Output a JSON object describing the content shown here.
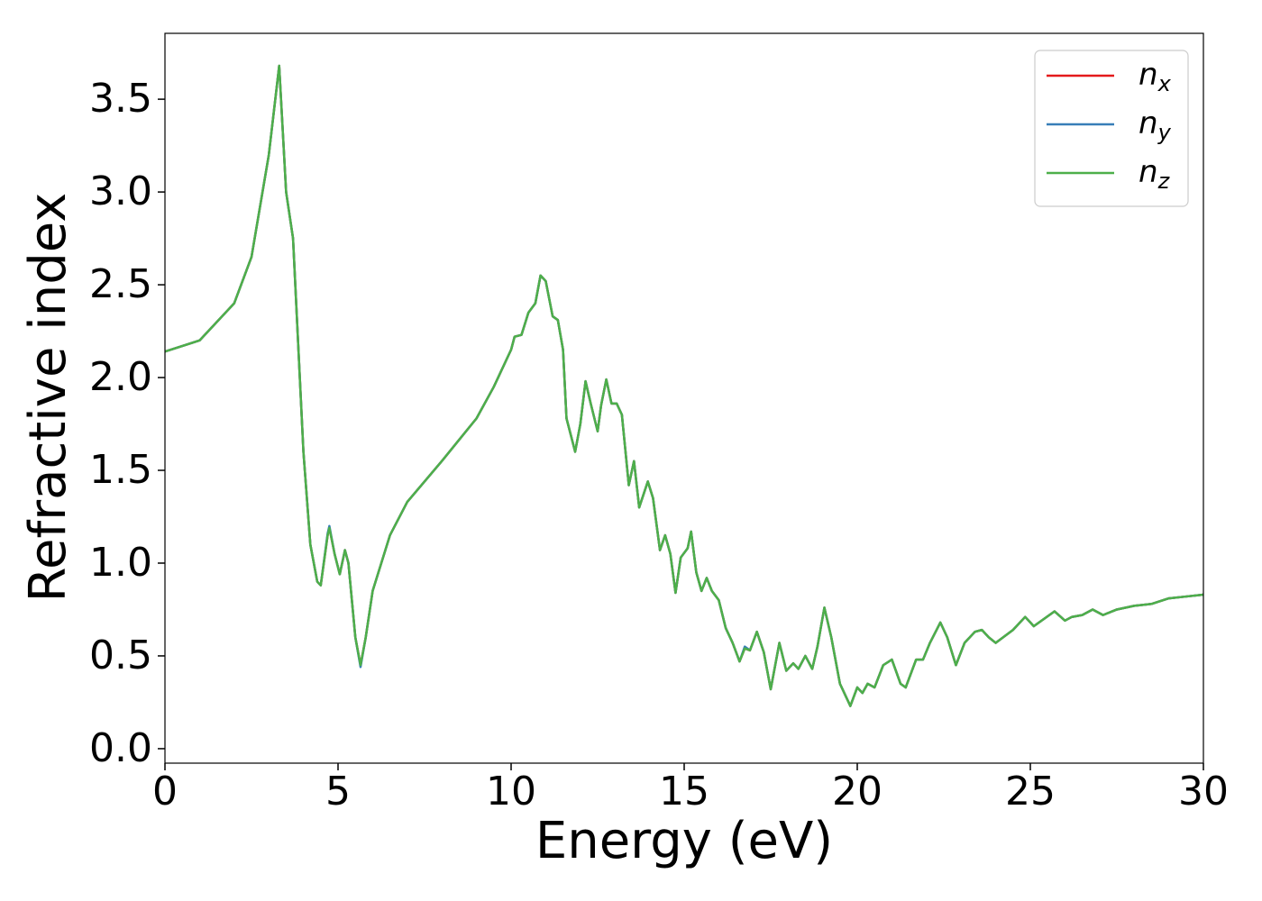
{
  "chart_data": {
    "type": "line",
    "xlabel": "Energy (eV)",
    "ylabel": "Refractive index",
    "x": [
      0,
      1,
      2,
      2.5,
      3,
      3.3,
      3.5,
      3.7,
      4,
      4.2,
      4.4,
      4.5,
      4.7,
      4.75,
      4.9,
      5.05,
      5.2,
      5.3,
      5.5,
      5.65,
      5.8,
      6,
      6.5,
      7,
      8,
      9,
      9.5,
      10,
      10.1,
      10.3,
      10.5,
      10.7,
      10.85,
      11,
      11.2,
      11.35,
      11.5,
      11.6,
      11.85,
      12,
      12.15,
      12.3,
      12.5,
      12.6,
      12.75,
      12.9,
      13.05,
      13.2,
      13.4,
      13.55,
      13.7,
      13.95,
      14.1,
      14.3,
      14.45,
      14.6,
      14.75,
      14.9,
      15.1,
      15.2,
      15.35,
      15.5,
      15.65,
      15.8,
      16,
      16.2,
      16.4,
      16.6,
      16.75,
      16.9,
      17.1,
      17.3,
      17.5,
      17.75,
      17.95,
      18.15,
      18.3,
      18.5,
      18.7,
      18.85,
      19.05,
      19.25,
      19.5,
      19.8,
      20,
      20.15,
      20.3,
      20.5,
      20.75,
      21,
      21.25,
      21.4,
      21.7,
      21.9,
      22.1,
      22.4,
      22.6,
      22.85,
      23.1,
      23.4,
      23.6,
      23.8,
      24,
      24.5,
      24.85,
      25.1,
      25.4,
      25.7,
      26,
      26.2,
      26.5,
      26.8,
      27.1,
      27.5,
      28,
      28.5,
      29,
      29.5,
      30
    ],
    "series": [
      {
        "name": "n_x",
        "color": "#e41a1c",
        "values": [
          2.14,
          2.2,
          2.4,
          2.65,
          3.2,
          3.68,
          3.0,
          2.75,
          1.6,
          1.1,
          0.9,
          0.88,
          1.15,
          1.19,
          1.05,
          0.94,
          1.07,
          1.0,
          0.6,
          0.45,
          0.6,
          0.85,
          1.15,
          1.33,
          1.55,
          1.78,
          1.95,
          2.15,
          2.22,
          2.23,
          2.35,
          2.4,
          2.55,
          2.52,
          2.33,
          2.31,
          2.15,
          1.78,
          1.6,
          1.75,
          1.98,
          1.86,
          1.71,
          1.85,
          1.99,
          1.86,
          1.86,
          1.8,
          1.42,
          1.55,
          1.3,
          1.44,
          1.35,
          1.07,
          1.15,
          1.05,
          0.84,
          1.03,
          1.08,
          1.17,
          0.95,
          0.85,
          0.92,
          0.85,
          0.8,
          0.65,
          0.57,
          0.47,
          0.54,
          0.53,
          0.63,
          0.52,
          0.32,
          0.57,
          0.42,
          0.46,
          0.43,
          0.5,
          0.43,
          0.55,
          0.76,
          0.6,
          0.35,
          0.23,
          0.33,
          0.3,
          0.35,
          0.33,
          0.45,
          0.48,
          0.35,
          0.33,
          0.48,
          0.48,
          0.57,
          0.68,
          0.6,
          0.45,
          0.57,
          0.63,
          0.64,
          0.6,
          0.57,
          0.64,
          0.71,
          0.66,
          0.7,
          0.74,
          0.69,
          0.71,
          0.72,
          0.75,
          0.72,
          0.75,
          0.77,
          0.78,
          0.81,
          0.82,
          0.83
        ]
      },
      {
        "name": "n_y",
        "color": "#377eb8",
        "values": [
          2.14,
          2.2,
          2.4,
          2.65,
          3.2,
          3.68,
          3.0,
          2.75,
          1.6,
          1.1,
          0.9,
          0.88,
          1.16,
          1.2,
          1.05,
          0.94,
          1.07,
          1.0,
          0.6,
          0.44,
          0.6,
          0.85,
          1.15,
          1.33,
          1.55,
          1.78,
          1.95,
          2.15,
          2.22,
          2.23,
          2.35,
          2.4,
          2.55,
          2.52,
          2.33,
          2.31,
          2.15,
          1.78,
          1.6,
          1.75,
          1.98,
          1.86,
          1.71,
          1.85,
          1.99,
          1.86,
          1.86,
          1.8,
          1.42,
          1.55,
          1.3,
          1.44,
          1.35,
          1.07,
          1.15,
          1.05,
          0.84,
          1.03,
          1.08,
          1.17,
          0.95,
          0.85,
          0.92,
          0.85,
          0.8,
          0.65,
          0.57,
          0.47,
          0.55,
          0.53,
          0.63,
          0.52,
          0.32,
          0.57,
          0.42,
          0.46,
          0.43,
          0.5,
          0.43,
          0.55,
          0.76,
          0.6,
          0.35,
          0.23,
          0.33,
          0.3,
          0.35,
          0.33,
          0.45,
          0.48,
          0.35,
          0.33,
          0.48,
          0.48,
          0.57,
          0.68,
          0.6,
          0.45,
          0.57,
          0.63,
          0.64,
          0.6,
          0.57,
          0.64,
          0.71,
          0.66,
          0.7,
          0.74,
          0.69,
          0.71,
          0.72,
          0.75,
          0.72,
          0.75,
          0.77,
          0.78,
          0.81,
          0.82,
          0.83
        ]
      },
      {
        "name": "n_z",
        "color": "#4daf4a",
        "values": [
          2.14,
          2.2,
          2.4,
          2.65,
          3.2,
          3.68,
          3.0,
          2.75,
          1.6,
          1.1,
          0.9,
          0.88,
          1.15,
          1.19,
          1.05,
          0.94,
          1.07,
          1.0,
          0.6,
          0.45,
          0.6,
          0.85,
          1.15,
          1.33,
          1.55,
          1.78,
          1.95,
          2.15,
          2.22,
          2.23,
          2.35,
          2.4,
          2.55,
          2.52,
          2.33,
          2.31,
          2.15,
          1.78,
          1.6,
          1.75,
          1.98,
          1.86,
          1.71,
          1.85,
          1.99,
          1.86,
          1.86,
          1.8,
          1.42,
          1.55,
          1.3,
          1.44,
          1.35,
          1.07,
          1.15,
          1.05,
          0.84,
          1.03,
          1.08,
          1.17,
          0.95,
          0.85,
          0.92,
          0.85,
          0.8,
          0.65,
          0.57,
          0.47,
          0.54,
          0.53,
          0.63,
          0.52,
          0.32,
          0.57,
          0.42,
          0.46,
          0.43,
          0.5,
          0.43,
          0.55,
          0.76,
          0.6,
          0.35,
          0.23,
          0.33,
          0.3,
          0.35,
          0.33,
          0.45,
          0.48,
          0.35,
          0.33,
          0.48,
          0.48,
          0.57,
          0.68,
          0.6,
          0.45,
          0.57,
          0.63,
          0.64,
          0.6,
          0.57,
          0.64,
          0.71,
          0.66,
          0.7,
          0.74,
          0.69,
          0.71,
          0.72,
          0.75,
          0.72,
          0.75,
          0.77,
          0.78,
          0.81,
          0.82,
          0.83
        ]
      }
    ],
    "xlim": [
      0,
      30
    ],
    "xticks": [
      0,
      5,
      10,
      15,
      20,
      25,
      30
    ],
    "ylim": [
      -0.078,
      3.855
    ],
    "yticks": [
      {
        "value": 0,
        "label": "0.0"
      },
      0.5,
      {
        "value": 1,
        "label": "1.0"
      },
      1.5,
      {
        "value": 2,
        "label": "2.0"
      },
      2.5,
      {
        "value": 3,
        "label": "3.0"
      },
      3.5
    ],
    "legend": "upper right",
    "grid": false
  }
}
